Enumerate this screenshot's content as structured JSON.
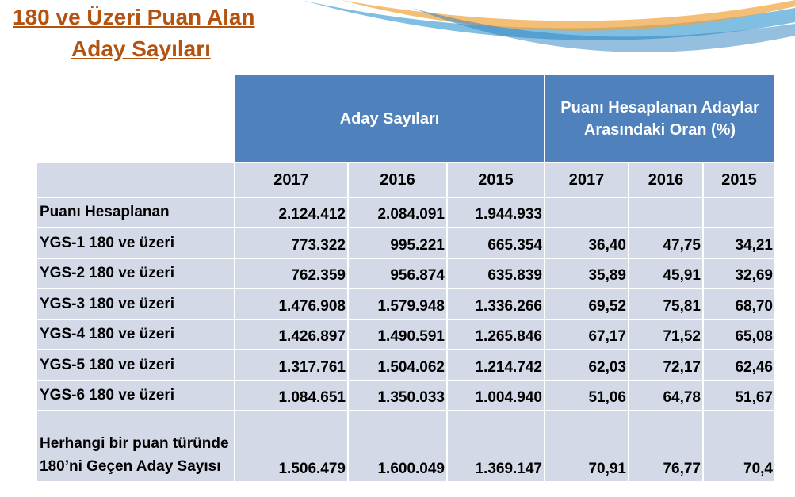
{
  "header": {
    "title_lines": [
      "180 ve Üzeri Puan Alan",
      "Aday Sayıları"
    ]
  },
  "table": {
    "groups": [
      "Aday Sayıları",
      "Puanı Hesaplanan Adaylar Arasındaki Oran (%)"
    ],
    "years": [
      "2017",
      "2016",
      "2015",
      "2017",
      "2016",
      "2015"
    ],
    "rows": [
      {
        "label": "Puanı Hesaplanan",
        "cells": [
          "2.124.412",
          "2.084.091",
          "1.944.933"
        ]
      },
      {
        "label": "YGS-1  180 ve üzeri",
        "cells": [
          "773.322",
          "995.221",
          "665.354",
          "36,40",
          "47,75",
          "34,21"
        ]
      },
      {
        "label": "YGS-2  180 ve üzeri",
        "cells": [
          "762.359",
          "956.874",
          "635.839",
          "35,89",
          "45,91",
          "32,69"
        ]
      },
      {
        "label": "YGS-3  180 ve üzeri",
        "cells": [
          "1.476.908",
          "1.579.948",
          "1.336.266",
          "69,52",
          "75,81",
          "68,70"
        ]
      },
      {
        "label": "YGS-4  180 ve üzeri",
        "cells": [
          "1.426.897",
          "1.490.591",
          "1.265.846",
          "67,17",
          "71,52",
          "65,08"
        ]
      },
      {
        "label": "YGS-5  180 ve üzeri",
        "cells": [
          "1.317.761",
          "1.504.062",
          "1.214.742",
          "62,03",
          "72,17",
          "62,46"
        ]
      },
      {
        "label": "YGS-6  180 ve üzeri",
        "cells": [
          "1.084.651",
          "1.350.033",
          "1.004.940",
          "51,06",
          "64,78",
          "51,67"
        ]
      },
      {
        "label": "Herhangi bir puan türünde 180’ni Geçen Aday Sayısı",
        "cells": [
          "1.506.479",
          "1.600.049",
          "1.369.147",
          "70,91",
          "76,77",
          "70,4"
        ]
      }
    ]
  }
}
